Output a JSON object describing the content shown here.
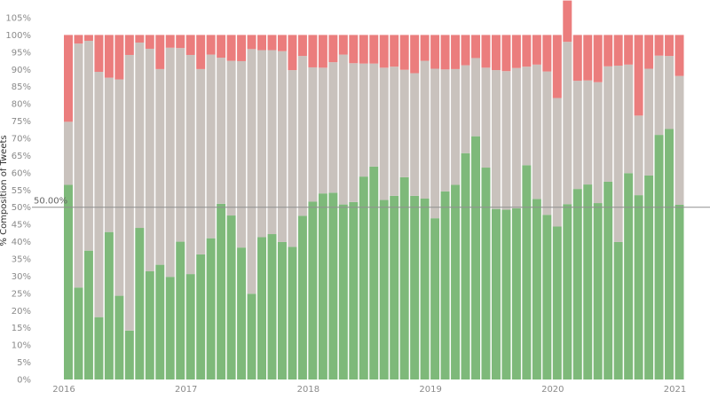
{
  "chart_data": {
    "type": "bar",
    "stacked": true,
    "ylabel": "% Composition of Tweets",
    "ylim": [
      0,
      105
    ],
    "ytick_labels": [
      "0%",
      "5%",
      "10%",
      "15%",
      "20%",
      "25%",
      "30%",
      "35%",
      "40%",
      "45%",
      "50%",
      "55%",
      "60%",
      "65%",
      "70%",
      "75%",
      "80%",
      "85%",
      "90%",
      "95%",
      "100%",
      "105%"
    ],
    "x_start": "2016-01",
    "x_tick_labels": [
      "2016",
      "2017",
      "2018",
      "2019",
      "2020",
      "2021"
    ],
    "grid": false,
    "reference_line": {
      "value": 50,
      "label": "50.00%"
    },
    "colors": {
      "green": "#7eb97a",
      "gray": "#c9c2bd",
      "red": "#eb7d7d",
      "ref_line": "#8f8f8f"
    },
    "series": [
      {
        "color": "green",
        "values": [
          56.5,
          26.7,
          37.4,
          18.1,
          42.8,
          24.3,
          14.2,
          44.0,
          31.4,
          33.3,
          29.8,
          40.0,
          30.6,
          36.3,
          41.0,
          51.0,
          47.6,
          38.3,
          24.9,
          41.3,
          42.2,
          39.9,
          38.5,
          47.5,
          51.6,
          54.0,
          54.2,
          50.8,
          51.5,
          58.9,
          61.8,
          52.1,
          53.3,
          58.7,
          53.3,
          52.5,
          46.8,
          54.6,
          56.5,
          65.7,
          70.6,
          61.5,
          49.5,
          49.3,
          49.7,
          62.2,
          52.4,
          47.8,
          44.4,
          50.9,
          55.3,
          56.6,
          51.2,
          57.4,
          39.9,
          59.9,
          53.5,
          59.2,
          71.0,
          72.7,
          50.7
        ]
      },
      {
        "color": "gray",
        "values": [
          18.3,
          70.8,
          60.9,
          71.2,
          44.8,
          62.8,
          80.0,
          53.8,
          64.6,
          56.8,
          66.5,
          56.2,
          63.6,
          53.8,
          53.3,
          42.4,
          44.9,
          54.1,
          71.0,
          54.3,
          53.4,
          55.4,
          51.3,
          46.4,
          39.0,
          36.5,
          37.9,
          43.5,
          40.3,
          32.8,
          29.9,
          38.4,
          37.5,
          31.2,
          35.6,
          40.0,
          43.4,
          35.4,
          33.6,
          25.5,
          22.7,
          29.0,
          40.3,
          40.2,
          40.7,
          28.6,
          39.0,
          41.6,
          37.3,
          47.1,
          31.4,
          30.2,
          35.1,
          33.5,
          51.2,
          31.5,
          23.1,
          31.0,
          23.0,
          21.2,
          37.4
        ]
      },
      {
        "color": "red",
        "values": [
          25.2,
          2.5,
          1.7,
          10.7,
          12.4,
          12.9,
          5.8,
          2.2,
          4.0,
          9.9,
          3.7,
          3.8,
          5.8,
          9.9,
          5.7,
          6.6,
          7.5,
          7.6,
          4.1,
          4.4,
          4.4,
          4.7,
          10.2,
          6.1,
          9.4,
          9.5,
          7.9,
          5.7,
          8.2,
          8.3,
          8.3,
          9.5,
          9.2,
          10.1,
          11.1,
          7.5,
          9.8,
          10.0,
          9.9,
          8.8,
          6.7,
          9.5,
          10.2,
          10.5,
          9.6,
          9.2,
          8.6,
          10.6,
          18.3,
          12.0,
          13.3,
          13.2,
          13.7,
          9.1,
          8.9,
          8.6,
          23.4,
          9.8,
          6.0,
          6.1,
          11.9
        ]
      }
    ]
  }
}
